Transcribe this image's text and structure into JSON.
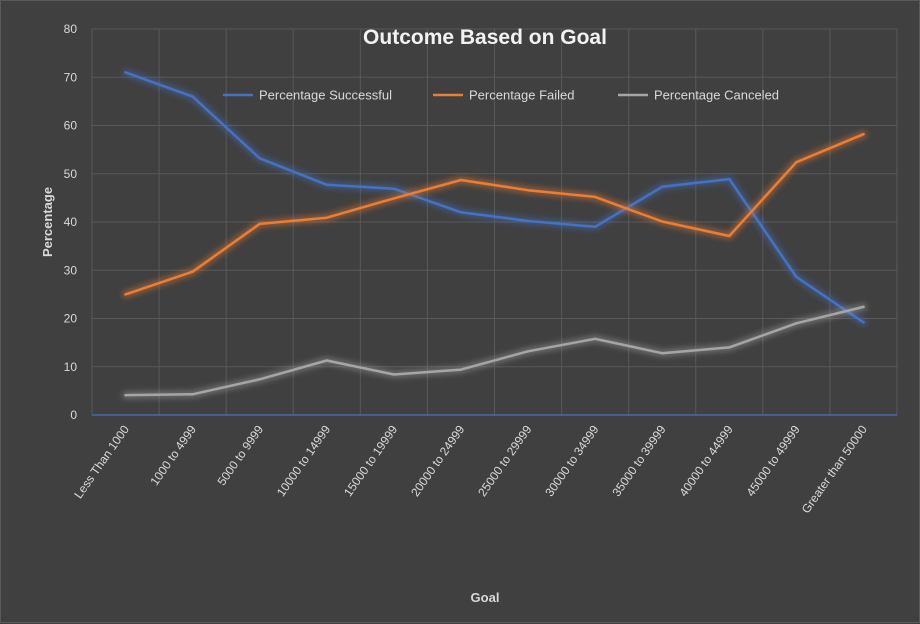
{
  "chart_data": {
    "type": "line",
    "title": "Outcome Based on Goal",
    "xlabel": "Goal",
    "ylabel": "Percentage",
    "ylim": [
      0,
      80
    ],
    "yticks": [
      0,
      10,
      20,
      30,
      40,
      50,
      60,
      70,
      80
    ],
    "grid": "vertical and horizontal",
    "legend_position": "top",
    "categories": [
      "Less Than 1000",
      "1000 to 4999",
      "5000 to 9999",
      "10000 to 14999",
      "15000 to 19999",
      "20000 to 24999",
      "25000 to 29999",
      "30000 to 34999",
      "35000 to 39999",
      "40000 to 44999",
      "45000 to 49999",
      "Greater than 50000"
    ],
    "series": [
      {
        "name": "Percentage Successful",
        "color": "#4472c4",
        "values": [
          71,
          66,
          53.2,
          47.7,
          46.9,
          42,
          40.2,
          39,
          47.3,
          48.9,
          28.6,
          19.2
        ]
      },
      {
        "name": "Percentage Failed",
        "color": "#ed7d31",
        "values": [
          25,
          29.7,
          39.6,
          40.9,
          44.9,
          48.7,
          46.6,
          45.2,
          40.1,
          37.1,
          52.4,
          58.2
        ]
      },
      {
        "name": "Percentage Canceled",
        "color": "#a5a5a5",
        "values": [
          4.1,
          4.3,
          7.4,
          11.3,
          8.4,
          9.4,
          13.2,
          15.8,
          12.8,
          14,
          19,
          22.4
        ]
      }
    ]
  }
}
